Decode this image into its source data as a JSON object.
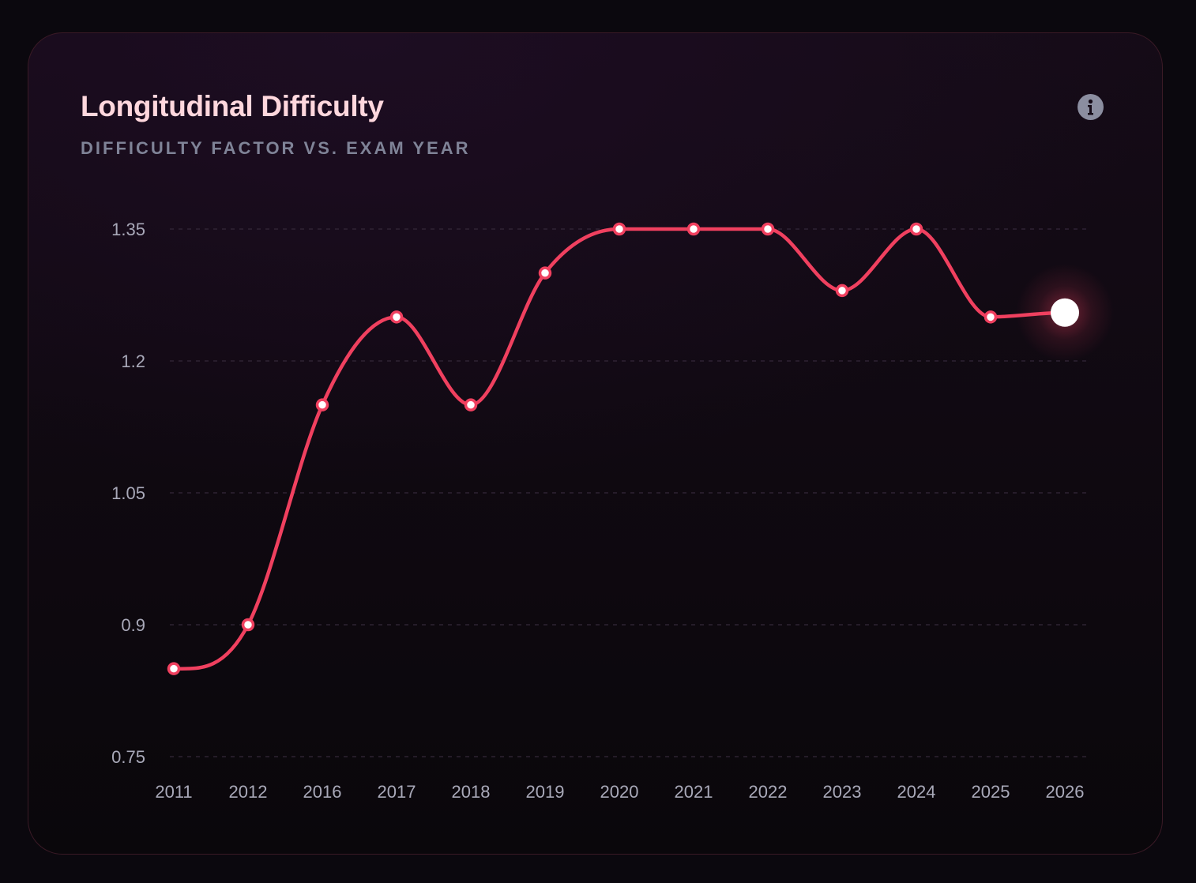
{
  "card": {
    "title": "Longitudinal Difficulty",
    "subtitle": "DIFFICULTY FACTOR VS. EXAM YEAR",
    "info_icon": "info-icon"
  },
  "colors": {
    "line": "#f0405f",
    "point_fill": "#ffffff",
    "title": "#ffd7dd",
    "subtitle": "#7f8397",
    "grid": "#34283a",
    "tick": "#a9a9b9"
  },
  "chart_data": {
    "type": "line",
    "title": "Longitudinal Difficulty",
    "subtitle": "DIFFICULTY FACTOR VS. EXAM YEAR",
    "xlabel": "",
    "ylabel": "",
    "categories": [
      "2011",
      "2012",
      "2016",
      "2017",
      "2018",
      "2019",
      "2020",
      "2021",
      "2022",
      "2023",
      "2024",
      "2025",
      "2026"
    ],
    "series": [
      {
        "name": "Difficulty Factor",
        "values": [
          0.85,
          0.9,
          1.15,
          1.25,
          1.15,
          1.3,
          1.35,
          1.35,
          1.35,
          1.28,
          1.35,
          1.25,
          1.255
        ]
      }
    ],
    "ylim": [
      0.75,
      1.35
    ],
    "yticks": [
      "0.75",
      "0.9",
      "1.05",
      "1.2",
      "1.35"
    ],
    "grid": true,
    "highlight": "2026"
  }
}
